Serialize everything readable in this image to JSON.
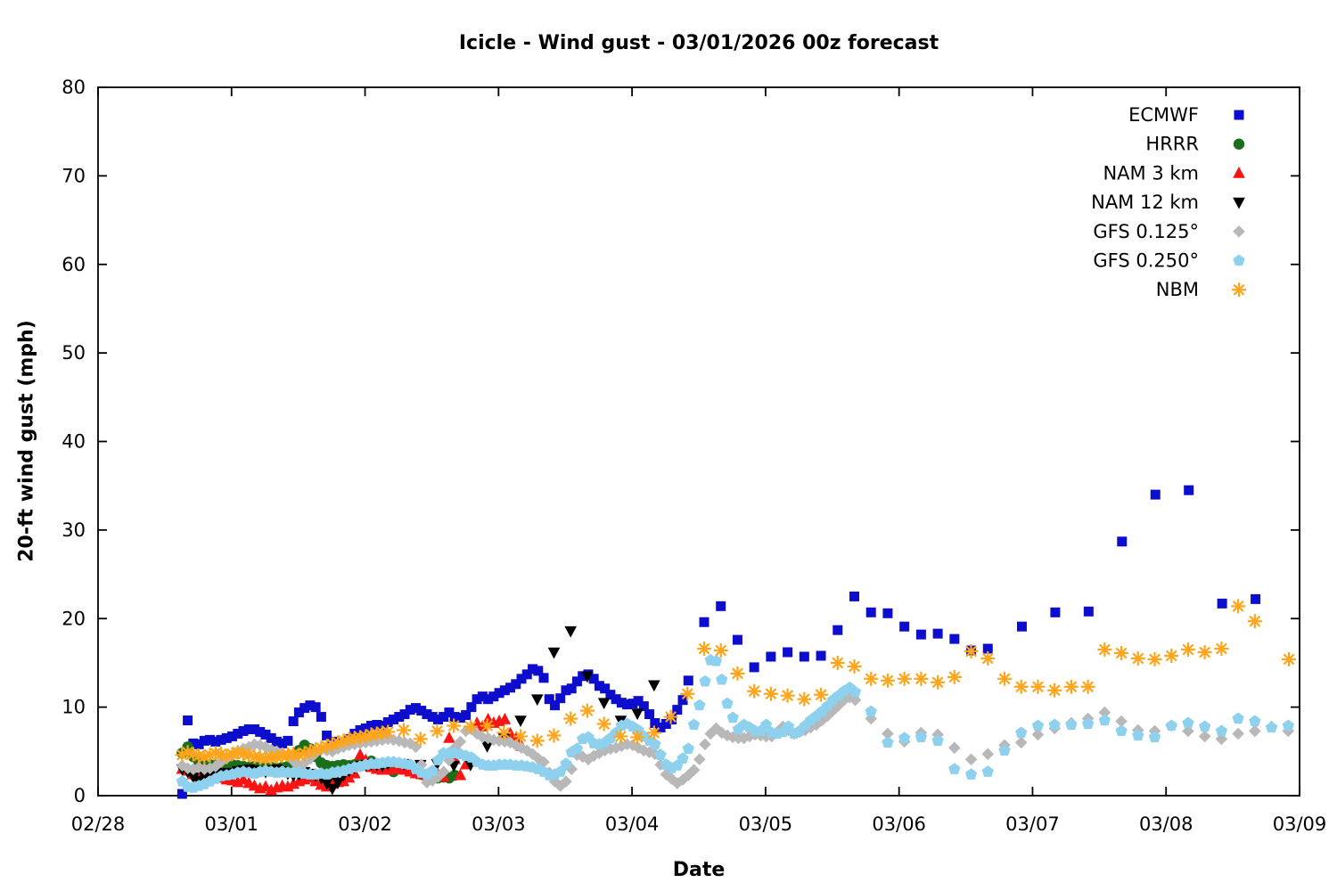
{
  "chart_data": {
    "type": "scatter",
    "title": "Icicle - Wind gust - 03/01/2026 00z forecast",
    "xlabel": "Date",
    "ylabel": "20-ft wind gust (mph)",
    "x_ticklabels": [
      "02/28",
      "03/01",
      "03/02",
      "03/03",
      "03/04",
      "03/05",
      "03/06",
      "03/07",
      "03/08",
      "03/09"
    ],
    "x_range_days": [
      0,
      9
    ],
    "ylim": [
      0,
      80
    ],
    "y_tick_step": 10,
    "grid": false,
    "legend_position": "top-right-inside",
    "x_axis_note": "x values are days after 02/28 00:00; first forecast point 0.63 = 03/01 00z",
    "series": [
      {
        "name": "ECMWF",
        "marker": "square",
        "color": "#0d0dcd",
        "segments": [
          {
            "start_day": 0.63,
            "step_hours": 1,
            "values": [
              0.2,
              8.5,
              5.9,
              5.8,
              6.2,
              6.3,
              6.1,
              6.3,
              6.5,
              6.7,
              7.0,
              7.3,
              7.5,
              7.5,
              7.2,
              6.9,
              6.5,
              6.1,
              5.9,
              6.2,
              8.4,
              9.4,
              9.9,
              10.2,
              10.0,
              8.9,
              6.8,
              6.1,
              5.6,
              5.9,
              6.4,
              7.0,
              7.4,
              7.6,
              7.9,
              8.0,
              7.9,
              8.3,
              8.6,
              8.9,
              9.2,
              9.7,
              9.9,
              9.6,
              9.2,
              8.9,
              8.6,
              8.9,
              9.4,
              8.9,
              8.8,
              9.1,
              10.0,
              10.9,
              11.2,
              10.9,
              11.2,
              11.6,
              11.9,
              12.2,
              12.6,
              13.2,
              13.7,
              14.3,
              14.1,
              13.3,
              10.9,
              10.2,
              11.0,
              11.9,
              12.1,
              12.9,
              13.5,
              13.7,
              13.2,
              12.4,
              12.1,
              11.4,
              10.9,
              10.5,
              10.3,
              10.4,
              10.7,
              10.1,
              9.2,
              8.2,
              7.7,
              8.1,
              8.6,
              9.7,
              10.8,
              13.0
            ]
          },
          {
            "start_day": 4.54,
            "step_hours": 3,
            "values": [
              19.6,
              21.4,
              17.6,
              14.5,
              15.7,
              16.2,
              15.7,
              15.8,
              18.7,
              22.5,
              20.7,
              20.6,
              19.1,
              18.2,
              18.3,
              17.7,
              16.4,
              16.6
            ]
          },
          {
            "start_day": 6.92,
            "step_hours": 6,
            "values": [
              19.1,
              20.7,
              20.8,
              28.7,
              34.0,
              34.5,
              21.7,
              22.2
            ]
          }
        ]
      },
      {
        "name": "HRRR",
        "marker": "circle",
        "color": "#1a701a",
        "segments": [
          {
            "start_day": 0.63,
            "step_hours": 1,
            "values": [
              4.8,
              5.5,
              4.4,
              3.8,
              3.6,
              3.5,
              3.4,
              3.5,
              3.6,
              3.5,
              3.4,
              3.3,
              3.2,
              3.3,
              3.2,
              3.1,
              3.2,
              3.1,
              3.2,
              3.3,
              3.9,
              5.1,
              5.7,
              5.3,
              4.4,
              3.7,
              3.4,
              3.3,
              3.4,
              3.5,
              3.4,
              3.5,
              3.6,
              3.5,
              3.9,
              3.6,
              3.3,
              3.0,
              2.7,
              3.1,
              3.3,
              3.0,
              2.6,
              2.4,
              2.4,
              2.2,
              2.0,
              2.1,
              2.0,
              2.3
            ]
          }
        ]
      },
      {
        "name": "NAM 3 km",
        "marker": "triangle-up",
        "color": "#fa1414",
        "segments": [
          {
            "start_day": 0.63,
            "step_hours": 1,
            "values": [
              3.0,
              2.8,
              2.4,
              2.1,
              2.3,
              2.7,
              2.4,
              2.0,
              1.8,
              1.7,
              1.5,
              1.8,
              1.4,
              1.1,
              0.8,
              1.0,
              0.6,
              0.9,
              1.1,
              1.0,
              1.3,
              1.6,
              1.8,
              2.0,
              1.6,
              1.2,
              1.0,
              1.3,
              1.5,
              1.6,
              2.0,
              2.5,
              4.6,
              4.0,
              3.2,
              3.0,
              2.9,
              2.9,
              3.0,
              3.1,
              2.9,
              2.7,
              2.5,
              2.4,
              2.3,
              2.2,
              2.4,
              2.1,
              6.5,
              4.1,
              2.3,
              3.5,
              7.6,
              8.2,
              7.8,
              8.6,
              8.2,
              8.4,
              8.6,
              7.0,
              6.4,
              5.6
            ]
          }
        ]
      },
      {
        "name": "NAM 12 km",
        "marker": "triangle-down",
        "color": "#000000",
        "segments": [
          {
            "start_day": 0.63,
            "step_hours": 1,
            "values": [
              3.0,
              2.7,
              2.1,
              1.7,
              2.2,
              2.6,
              2.8,
              2.6,
              2.5,
              2.6,
              2.8,
              2.9,
              3.0,
              2.9,
              2.8,
              2.7,
              2.9,
              3.0,
              2.8,
              2.5,
              2.3,
              2.4,
              2.7,
              2.5,
              2.3,
              2.0,
              1.4,
              0.8,
              1.5,
              2.3,
              2.8,
              3.2,
              3.4,
              3.5,
              3.6,
              3.5,
              3.4,
              3.6
            ]
          },
          {
            "start_day": 2.29,
            "step_hours": 3,
            "values": [
              3.6,
              3.5,
              3.6,
              3.4,
              3.5,
              5.6,
              6.5,
              8.5,
              10.9,
              16.2,
              18.6,
              13.5,
              10.5,
              8.5,
              9.3,
              12.5
            ]
          }
        ]
      },
      {
        "name": "GFS 0.125°",
        "marker": "diamond",
        "color": "#b8b8b8",
        "segments": [
          {
            "start_day": 0.63,
            "step_hours": 1,
            "values": [
              3.4,
              3.1,
              3.0,
              3.2,
              3.0,
              3.1,
              3.3,
              3.8,
              4.2,
              4.6,
              5.0,
              5.3,
              5.5,
              5.8,
              5.7,
              5.5,
              5.2,
              5.0,
              4.8,
              4.6,
              3.9,
              3.3,
              3.7,
              4.2,
              4.8,
              5.2,
              5.1,
              5.0,
              5.3,
              5.5,
              5.7,
              5.8,
              5.9,
              6.0,
              6.1,
              6.2,
              6.3,
              6.4,
              6.3,
              6.2,
              6.0,
              5.9,
              5.5,
              3.5,
              1.5,
              1.7,
              2.1,
              2.7,
              4.0,
              5.4,
              6.1,
              7.3,
              7.5,
              7.0,
              6.6,
              6.5,
              6.3,
              6.2,
              6.1,
              6.0,
              5.7,
              5.4,
              5.1,
              4.7,
              4.2,
              3.8,
              2.6,
              1.6,
              1.1,
              1.6,
              3.0,
              4.6,
              4.4,
              4.1,
              4.5,
              4.8,
              5.1,
              5.3,
              5.4,
              5.6,
              5.8,
              5.7,
              5.4,
              5.1,
              4.9,
              4.7,
              3.5,
              2.4,
              1.9,
              1.4,
              1.8,
              2.3,
              2.9,
              4.1,
              5.8,
              7.0,
              7.6,
              7.1,
              6.8,
              6.6,
              6.5,
              6.5,
              6.7,
              6.9,
              6.8,
              6.7,
              6.7,
              7.2,
              7.8,
              7.4,
              7.0,
              7.2,
              7.4,
              7.7,
              8.0,
              8.5,
              9.0,
              9.6,
              10.2,
              10.8,
              11.1,
              10.8
            ]
          },
          {
            "start_day": 5.79,
            "step_hours": 3,
            "values": [
              8.7,
              7.0,
              6.1,
              7.1,
              6.9,
              5.4,
              4.1,
              4.7,
              5.7,
              6.0,
              6.9,
              7.6,
              8.2,
              8.7,
              9.4,
              8.4,
              7.4,
              7.3,
              7.9,
              7.3,
              6.7,
              6.4,
              7.0,
              7.3,
              7.8,
              7.3
            ]
          }
        ]
      },
      {
        "name": "GFS 0.250°",
        "marker": "pentagon",
        "color": "#8ed1ee",
        "segments": [
          {
            "start_day": 0.63,
            "step_hours": 1,
            "values": [
              1.6,
              1.0,
              0.9,
              1.1,
              1.3,
              1.6,
              1.9,
              2.2,
              2.3,
              2.4,
              2.6,
              2.7,
              2.6,
              2.5,
              2.7,
              2.8,
              2.7,
              2.6,
              2.7,
              2.6,
              2.6,
              2.6,
              2.5,
              2.4,
              2.4,
              2.5,
              2.4,
              2.6,
              2.7,
              2.8,
              3.0,
              3.2,
              3.3,
              3.5,
              3.6,
              3.6,
              3.7,
              3.8,
              3.8,
              3.7,
              3.6,
              3.5,
              3.0,
              2.6,
              2.4,
              2.8,
              4.0,
              4.8,
              4.8,
              4.8,
              4.7,
              4.5,
              4.3,
              3.8,
              3.5,
              3.4,
              3.4,
              3.5,
              3.5,
              3.5,
              3.4,
              3.4,
              3.3,
              3.2,
              3.0,
              2.7,
              2.3,
              2.4,
              2.7,
              3.6,
              4.9,
              5.3,
              6.4,
              6.6,
              5.9,
              5.8,
              6.0,
              6.5,
              7.1,
              7.9,
              8.1,
              7.8,
              7.4,
              6.7,
              6.2,
              5.8,
              4.6,
              3.5,
              3.1,
              3.4,
              4.2,
              5.3,
              8.0,
              10.2,
              12.9,
              15.3,
              15.2,
              13.1,
              10.4,
              8.8,
              7.5,
              8.0,
              7.7,
              7.3,
              7.3,
              8.0,
              7.1,
              7.0,
              7.2,
              7.8,
              7.0,
              7.3,
              7.9,
              8.5,
              9.0,
              9.5,
              10.1,
              10.8,
              11.3,
              11.8,
              12.2,
              11.7
            ]
          },
          {
            "start_day": 5.79,
            "step_hours": 3,
            "values": [
              9.5,
              6.0,
              6.5,
              6.6,
              6.2,
              3.0,
              2.4,
              2.7,
              5.1,
              7.1,
              7.9,
              8.0,
              8.0,
              8.1,
              8.5,
              7.3,
              6.8,
              6.6,
              7.9,
              8.2,
              7.8,
              7.3,
              8.7,
              8.4,
              7.7,
              7.9
            ]
          }
        ]
      },
      {
        "name": "NBM",
        "marker": "asterisk",
        "color": "#ffa51c",
        "segments": [
          {
            "start_day": 0.63,
            "step_hours": 1,
            "values": [
              4.6,
              4.9,
              4.7,
              4.5,
              4.4,
              4.6,
              4.8,
              4.7,
              4.5,
              4.7,
              4.9,
              4.7,
              4.6,
              4.4,
              4.3,
              4.2,
              4.3,
              4.4,
              4.5,
              4.6,
              4.7,
              4.6,
              4.8,
              5.0,
              5.2,
              5.4,
              5.6,
              5.8,
              6.0,
              6.2,
              6.4,
              6.5,
              6.6,
              6.7,
              6.9,
              7.0,
              7.1,
              7.2
            ]
          },
          {
            "start_day": 2.29,
            "step_hours": 3,
            "values": [
              7.4,
              6.4,
              7.3,
              7.9,
              7.8,
              7.9,
              7.1,
              6.7,
              6.2,
              6.8,
              8.7,
              9.6,
              8.1,
              6.7,
              6.6,
              7.1,
              8.9,
              11.5,
              16.6,
              16.4,
              13.8,
              11.8,
              11.5,
              11.3,
              10.9,
              11.4,
              15.0,
              14.6,
              13.2,
              13.0,
              13.2,
              13.2,
              12.8,
              13.4,
              16.3,
              15.5,
              13.2,
              12.3,
              12.3,
              11.9,
              12.3,
              12.3,
              16.5,
              16.1,
              15.5,
              15.4,
              15.8,
              16.5,
              16.2,
              16.6,
              21.4,
              19.7
            ]
          },
          {
            "start_day": 8.92,
            "step_hours": 6,
            "values": [
              15.4
            ]
          }
        ]
      }
    ]
  }
}
